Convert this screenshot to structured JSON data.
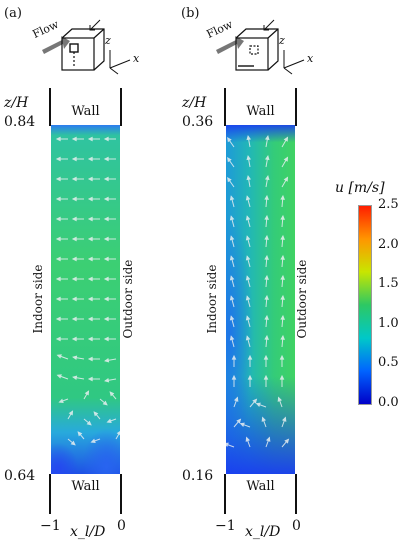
{
  "panels": [
    {
      "id": "a",
      "letter": "(a)",
      "flow_label": "Flow",
      "axis_z": "z",
      "axis_x": "x",
      "zh_label": "z/H",
      "top_value": "0.84",
      "bottom_value": "0.64",
      "wall_top": "Wall",
      "wall_bottom": "Wall",
      "indoor_label": "Indoor side",
      "outdoor_label": "Outdoor side",
      "x_left": "−1",
      "x_right": "0",
      "x_label": "x_l/D"
    },
    {
      "id": "b",
      "letter": "(b)",
      "flow_label": "Flow",
      "axis_z": "z",
      "axis_x": "x",
      "zh_label": "z/H",
      "top_value": "0.36",
      "bottom_value": "0.16",
      "wall_top": "Wall",
      "wall_bottom": "Wall",
      "indoor_label": "Indoor side",
      "outdoor_label": "Outdoor side",
      "x_left": "−1",
      "x_right": "0",
      "x_label": "x_l/D"
    }
  ],
  "colorbar": {
    "title": "u [m/s]",
    "ticks": [
      "2.5",
      "2.0",
      "1.5",
      "1.0",
      "0.5",
      "0.0"
    ],
    "min": 0.0,
    "max": 2.5,
    "colors": [
      "#0000c8",
      "#0064ff",
      "#00c8c8",
      "#2dc864",
      "#c8e600",
      "#ff9600",
      "#ff1e00"
    ]
  }
}
